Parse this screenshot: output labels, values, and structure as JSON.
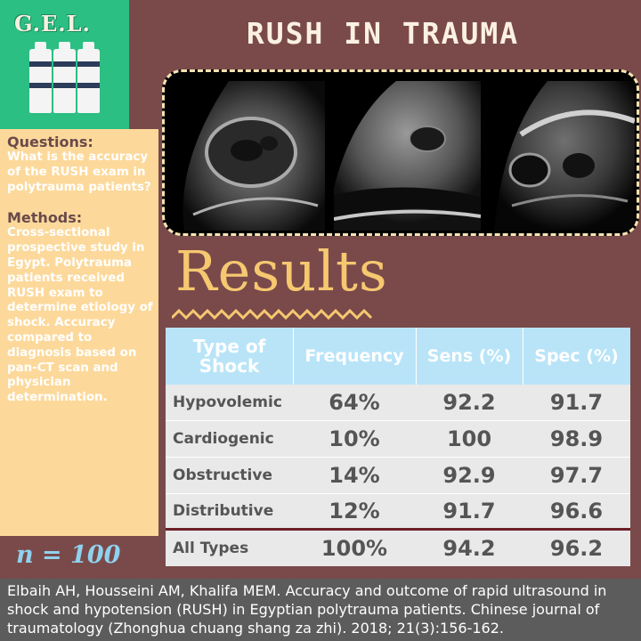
{
  "logo": {
    "text": "G.E.L."
  },
  "title": "RUSH IN TRAUMA",
  "sidebar": {
    "questions_heading": "Questions:",
    "questions_text": "What is the accuracy of the RUSH exam in polytrauma patients?",
    "methods_heading": "Methods:",
    "methods_text": "Cross-sectional prospective study in Egypt. Polytrauma patients received RUSH exam to determine etiology of shock. Accuracy compared to diagnosis based on pan-CT scan and physician determination."
  },
  "n_label": "n = 100",
  "results_heading": "Results",
  "table": {
    "headers": [
      "Type of Shock",
      "Frequency",
      "Sens (%)",
      "Spec (%)"
    ],
    "rows": [
      [
        "Hypovolemic",
        "64%",
        "92.2",
        "91.7"
      ],
      [
        "Cardiogenic",
        "10%",
        "100",
        "98.9"
      ],
      [
        "Obstructive",
        "14%",
        "92.9",
        "97.7"
      ],
      [
        "Distributive",
        "12%",
        "91.7",
        "96.6"
      ],
      [
        "All Types",
        "100%",
        "94.2",
        "96.2"
      ]
    ]
  },
  "citation": "Elbaih AH, Housseini AM, Khalifa MEM. Accuracy and outcome of rapid ultrasound in shock and hypotension (RUSH) in Egyptian polytrauma patients. Chinese journal of traumatology (Zhonghua chuang shang za zhi). 2018; 21(3):156-162.",
  "colors": {
    "background": "#7a4a4a",
    "logo_green": "#2bbf83",
    "sidebar": "#fcd99b",
    "table_header": "#b9e4f8",
    "results": "#f6c870",
    "divider": "#6e1f27"
  },
  "icons": [
    "iv-bottle-icon",
    "iv-bottle-icon",
    "iv-bottle-icon"
  ]
}
